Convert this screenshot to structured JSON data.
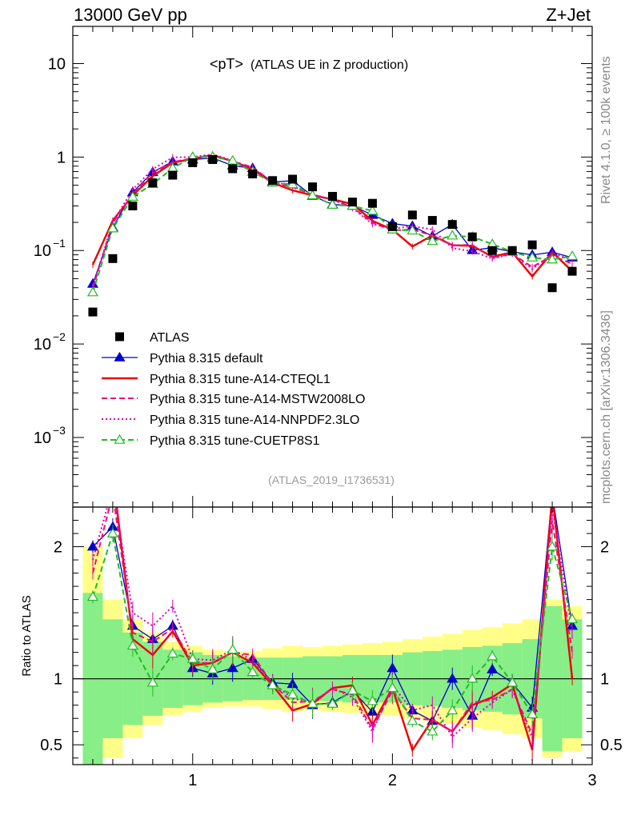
{
  "header": {
    "energy": "13000 GeV pp",
    "process": "Z+Jet"
  },
  "side_labels": {
    "rivet": "Rivet 4.1.0, ≥ 100k events",
    "mcplots": "mcplots.cern.ch [arXiv:1306.3436]"
  },
  "chart_data": {
    "type": "line",
    "title": "<pT>",
    "title_suffix": "(ATLAS UE in Z production)",
    "analysis_tag": "(ATLAS_2019_I1736531)",
    "x": [
      0.5,
      0.6,
      0.7,
      0.8,
      0.9,
      1.0,
      1.1,
      1.2,
      1.3,
      1.4,
      1.5,
      1.6,
      1.7,
      1.8,
      1.9,
      2.0,
      2.1,
      2.2,
      2.3,
      2.4,
      2.5,
      2.6,
      2.7,
      2.8,
      2.9
    ],
    "xlim": [
      0.4,
      3.0
    ],
    "ylim_main": [
      0.00018,
      25
    ],
    "ylim_ratio": [
      0.35,
      2.3
    ],
    "main_yticks": [
      {
        "v": 0.001,
        "t": "10",
        "e": "−3"
      },
      {
        "v": 0.01,
        "t": "10",
        "e": "−2"
      },
      {
        "v": 0.1,
        "t": "10",
        "e": "−1"
      },
      {
        "v": 1,
        "t": "1",
        "e": ""
      },
      {
        "v": 10,
        "t": "10",
        "e": ""
      }
    ],
    "ratio_ylabel": "Ratio to ATLAS",
    "ratio_yticks": [
      {
        "v": 0.5,
        "t": "0.5"
      },
      {
        "v": 1,
        "t": "1"
      },
      {
        "v": 2,
        "t": "2"
      }
    ],
    "xticks": [
      {
        "v": 1,
        "t": "1"
      },
      {
        "v": 2,
        "t": "2"
      },
      {
        "v": 3,
        "t": "3"
      }
    ],
    "data": {
      "name": "ATLAS",
      "values": [
        0.022,
        0.082,
        0.3,
        0.53,
        0.64,
        0.87,
        0.94,
        0.75,
        0.66,
        0.56,
        0.58,
        0.48,
        0.38,
        0.33,
        0.32,
        0.18,
        0.24,
        0.21,
        0.19,
        0.14,
        0.1,
        0.1,
        0.115,
        0.04,
        0.06
      ]
    },
    "bands": {
      "inner": [
        0.65,
        0.45,
        0.35,
        0.28,
        0.22,
        0.2,
        0.18,
        0.17,
        0.16,
        0.16,
        0.16,
        0.17,
        0.17,
        0.18,
        0.18,
        0.18,
        0.2,
        0.21,
        0.22,
        0.24,
        0.25,
        0.27,
        0.3,
        0.55,
        0.45
      ],
      "outer": [
        1.0,
        0.6,
        0.45,
        0.35,
        0.28,
        0.25,
        0.22,
        0.21,
        0.21,
        0.23,
        0.25,
        0.24,
        0.25,
        0.26,
        0.27,
        0.28,
        0.3,
        0.32,
        0.34,
        0.37,
        0.39,
        0.42,
        0.45,
        0.6,
        0.55
      ]
    },
    "series": [
      {
        "name": "Pythia 8.315 default",
        "color": "#0000cc",
        "style": "solid",
        "marker": "triangle-filled",
        "ratio": [
          2.0,
          2.15,
          1.4,
          1.3,
          1.4,
          1.08,
          1.04,
          1.08,
          1.15,
          0.97,
          0.96,
          0.8,
          0.82,
          0.91,
          0.75,
          1.08,
          0.76,
          0.68,
          1.0,
          0.72,
          1.07,
          0.97,
          0.78,
          2.4,
          1.4
        ]
      },
      {
        "name": "Pythia 8.315 tune-A14-CTEQL1",
        "color": "#ee0000",
        "style": "solid",
        "marker": "none",
        "ratio": [
          3.2,
          2.55,
          1.3,
          1.18,
          1.36,
          1.1,
          1.12,
          1.2,
          1.12,
          0.95,
          0.76,
          0.81,
          0.93,
          0.95,
          0.65,
          0.93,
          0.46,
          0.69,
          0.6,
          0.8,
          0.86,
          0.96,
          0.46,
          2.4,
          1.0
        ]
      },
      {
        "name": "Pythia 8.315 tune-A14-MSTW2008LO",
        "color": "#ee1177",
        "style": "dashed",
        "marker": "none",
        "ratio": [
          1.8,
          2.4,
          1.35,
          1.28,
          1.38,
          1.12,
          1.12,
          1.2,
          1.18,
          0.96,
          0.82,
          0.83,
          0.92,
          0.88,
          0.62,
          0.91,
          0.7,
          0.69,
          0.6,
          0.82,
          0.84,
          0.92,
          0.58,
          2.2,
          1.2
        ]
      },
      {
        "name": "Pythia 8.315 tune-A14-NNPDF2.3LO",
        "color": "#dd00bb",
        "style": "dotted",
        "marker": "none",
        "ratio": [
          1.9,
          2.45,
          1.5,
          1.4,
          1.55,
          1.15,
          1.14,
          1.22,
          1.14,
          0.97,
          0.85,
          0.82,
          0.93,
          0.86,
          0.6,
          0.95,
          0.76,
          0.8,
          0.56,
          0.7,
          0.82,
          0.92,
          0.55,
          2.3,
          1.35
        ]
      },
      {
        "name": "Pythia 8.315 tune-CUETP8S1",
        "color": "#22bb22",
        "style": "dashed",
        "marker": "triangle-open",
        "ratio": [
          1.62,
          2.1,
          1.25,
          0.97,
          1.19,
          1.15,
          1.07,
          1.22,
          1.05,
          0.95,
          0.88,
          0.81,
          0.81,
          0.91,
          0.83,
          0.93,
          0.68,
          0.6,
          0.76,
          1.0,
          1.17,
          0.97,
          0.73,
          2.0,
          1.45
        ]
      }
    ]
  }
}
